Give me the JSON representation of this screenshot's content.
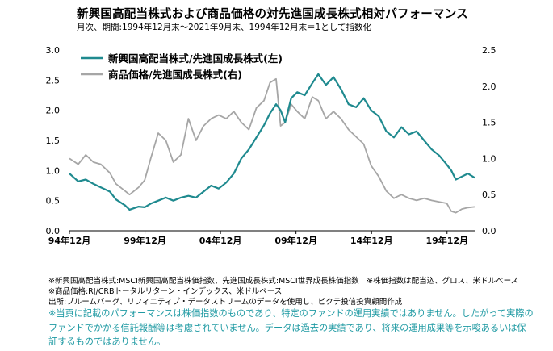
{
  "title": "新興国高配当株式および商品価格の対先進国成長株式相対パフォーマンス",
  "subtitle": "月次、期間:1994年12月末～2021年9月末、1994年12月末＝1として指数化",
  "notes": [
    "※新興国高配当株式:MSCI新興国高配当株価指数、先進国成長株式:MSCI世界成長株価指数　※株価指数は配当込、グロス、米ドルベース",
    "※商品価格:RJ/CRBトータルリターン・インデックス、米ドルベース",
    "出所:ブルームバーグ、リフィニティブ・データストリームのデータを使用し、ピクテ投信投資顧問作成"
  ],
  "disclaimer": [
    "※当頁に記載のパフォーマンスは株価指数のものであり、特定のファンドの運用実績ではありません。したがって実際の",
    "ファンドでかかる信託報酬等は考慮されていません。データは過去の実績であり、将来の運用成果等を示唆あるいは保",
    "証するものではありません。"
  ],
  "colors": {
    "series1": "#1f8a8f",
    "series2": "#a6a6a6",
    "disclaimer": "#1f9aa3"
  },
  "chart_data": {
    "type": "line",
    "x_ticks": [
      "94年12月",
      "99年12月",
      "04年12月",
      "09年12月",
      "14年12月",
      "19年12月"
    ],
    "left_axis": {
      "ylim": [
        0,
        3.0
      ],
      "ticks": [
        "0.0",
        "0.5",
        "1.0",
        "1.5",
        "2.0",
        "2.5",
        "3.0"
      ]
    },
    "right_axis": {
      "ylim": [
        0,
        2.5
      ],
      "ticks": [
        "0.0",
        "0.5",
        "1.0",
        "1.5",
        "2.0",
        "2.5"
      ]
    },
    "legend_position": "top-left",
    "series": [
      {
        "name": "新興国高配当株式/先進国成長株式(左)",
        "axis": "left",
        "color": "#1f8a8f",
        "x": [
          1994.92,
          1995.5,
          1996.0,
          1996.5,
          1997.0,
          1997.6,
          1998.0,
          1998.6,
          1998.9,
          1999.5,
          1999.9,
          2000.3,
          2000.8,
          2001.3,
          2001.8,
          2002.3,
          2002.8,
          2003.3,
          2003.8,
          2004.3,
          2004.8,
          2005.3,
          2005.8,
          2006.3,
          2006.8,
          2007.3,
          2007.8,
          2008.2,
          2008.6,
          2008.9,
          2009.2,
          2009.6,
          2010.0,
          2010.5,
          2011.0,
          2011.4,
          2011.9,
          2012.4,
          2012.9,
          2013.4,
          2013.9,
          2014.4,
          2014.9,
          2015.4,
          2015.9,
          2016.4,
          2016.9,
          2017.4,
          2017.9,
          2018.4,
          2018.9,
          2019.4,
          2019.9,
          2020.2,
          2020.5,
          2020.9,
          2021.3,
          2021.75
        ],
        "values": [
          0.95,
          0.82,
          0.85,
          0.78,
          0.72,
          0.65,
          0.52,
          0.42,
          0.35,
          0.4,
          0.39,
          0.45,
          0.5,
          0.55,
          0.5,
          0.55,
          0.58,
          0.55,
          0.65,
          0.75,
          0.7,
          0.8,
          0.95,
          1.2,
          1.35,
          1.55,
          1.75,
          1.95,
          2.1,
          2.0,
          1.8,
          2.2,
          2.3,
          2.25,
          2.45,
          2.6,
          2.42,
          2.55,
          2.35,
          2.1,
          2.05,
          2.2,
          2.0,
          1.9,
          1.65,
          1.55,
          1.72,
          1.6,
          1.65,
          1.5,
          1.35,
          1.25,
          1.1,
          1.0,
          0.85,
          0.9,
          0.95,
          0.88
        ]
      },
      {
        "name": "商品価格/先進国成長株式(右)",
        "axis": "right",
        "color": "#a6a6a6",
        "x": [
          1994.92,
          1995.5,
          1996.0,
          1996.5,
          1997.0,
          1997.6,
          1998.0,
          1998.6,
          1998.9,
          1999.5,
          1999.9,
          2000.3,
          2000.8,
          2001.3,
          2001.8,
          2002.3,
          2002.8,
          2003.3,
          2003.8,
          2004.3,
          2004.8,
          2005.3,
          2005.8,
          2006.3,
          2006.8,
          2007.3,
          2007.8,
          2008.2,
          2008.6,
          2008.9,
          2009.2,
          2009.6,
          2010.0,
          2010.5,
          2011.0,
          2011.4,
          2011.9,
          2012.4,
          2012.9,
          2013.4,
          2013.9,
          2014.4,
          2014.9,
          2015.4,
          2015.9,
          2016.4,
          2016.9,
          2017.4,
          2017.9,
          2018.4,
          2018.9,
          2019.4,
          2019.9,
          2020.2,
          2020.5,
          2020.9,
          2021.3,
          2021.75
        ],
        "values": [
          1.0,
          0.92,
          1.05,
          0.95,
          0.92,
          0.8,
          0.65,
          0.55,
          0.5,
          0.6,
          0.7,
          1.0,
          1.35,
          1.25,
          0.95,
          1.05,
          1.55,
          1.25,
          1.45,
          1.55,
          1.6,
          1.55,
          1.65,
          1.5,
          1.4,
          1.7,
          1.8,
          2.05,
          2.1,
          1.45,
          1.5,
          1.75,
          1.65,
          1.55,
          1.85,
          1.8,
          1.55,
          1.65,
          1.55,
          1.4,
          1.3,
          1.2,
          0.9,
          0.75,
          0.55,
          0.45,
          0.5,
          0.45,
          0.42,
          0.45,
          0.42,
          0.4,
          0.38,
          0.27,
          0.25,
          0.3,
          0.32,
          0.33
        ]
      }
    ]
  }
}
